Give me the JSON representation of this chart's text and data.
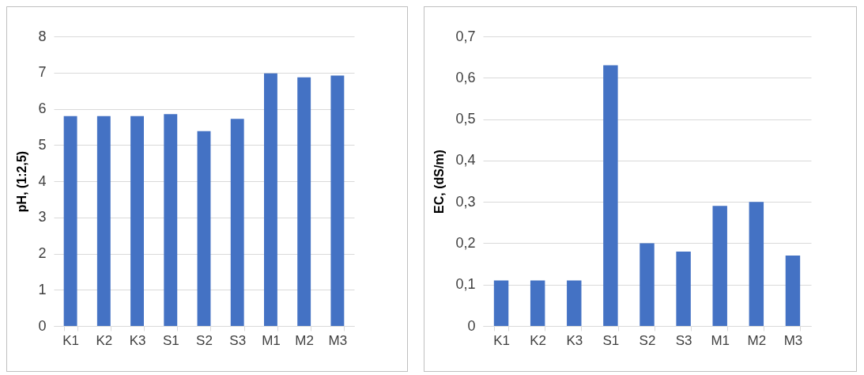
{
  "chart_data": [
    {
      "type": "bar",
      "ylabel": "pH, (1:2,5)",
      "categories": [
        "K1",
        "K2",
        "K3",
        "S1",
        "S2",
        "S3",
        "M1",
        "M2",
        "M3"
      ],
      "values": [
        5.8,
        5.8,
        5.8,
        5.85,
        5.38,
        5.72,
        6.98,
        6.87,
        6.92
      ],
      "color": "#4472c4",
      "ylim": [
        0,
        8
      ],
      "yticks": [
        0,
        1,
        2,
        3,
        4,
        5,
        6,
        7,
        8
      ],
      "grid": "y"
    },
    {
      "type": "bar",
      "ylabel": "EC, (dS/m)",
      "categories": [
        "K1",
        "K2",
        "K3",
        "S1",
        "S2",
        "S3",
        "M1",
        "M2",
        "M3"
      ],
      "values": [
        0.11,
        0.11,
        0.11,
        0.63,
        0.2,
        0.18,
        0.29,
        0.3,
        0.17
      ],
      "color": "#4472c4",
      "ylim": [
        0,
        0.7
      ],
      "yticks": [
        0,
        {
          "value": 0.1,
          "label": "0,1"
        },
        {
          "value": 0.2,
          "label": "0,2"
        },
        {
          "value": 0.3,
          "label": "0,3"
        },
        {
          "value": 0.4,
          "label": "0,4"
        },
        {
          "value": 0.5,
          "label": "0,5"
        },
        {
          "value": 0.6,
          "label": "0,6"
        },
        {
          "value": 0.7,
          "label": "0,7"
        }
      ],
      "grid": "y"
    }
  ]
}
